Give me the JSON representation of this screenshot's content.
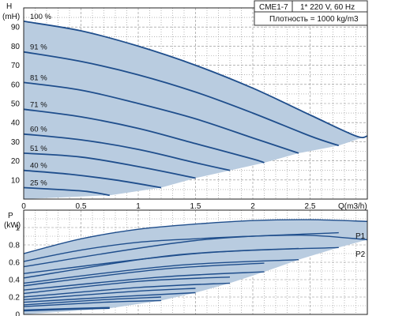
{
  "legend": {
    "model": "CME1-7",
    "supply": "1* 220 V, 60 Hz",
    "density": "Плотность = 1000 kg/m3"
  },
  "colors": {
    "curve": "#1f4e8c",
    "fill": "#b9cce0",
    "grid": "#8a8a8a",
    "axis": "#222222"
  },
  "chart_data": [
    {
      "type": "line",
      "id": "head",
      "ylabel_top": "H",
      "ylabel_unit": "(mH)",
      "xlabel": "Q(m3/h)",
      "xlim": [
        0,
        3.0
      ],
      "ylim": [
        0,
        100
      ],
      "xticks": [
        "0",
        "0.5",
        "1",
        "1.5",
        "2",
        "2.5"
      ],
      "yticks": [
        "10",
        "20",
        "30",
        "40",
        "50",
        "60",
        "70",
        "80",
        "90"
      ],
      "grid": true,
      "series": [
        {
          "name": "100 %",
          "x": [
            0,
            0.5,
            1.0,
            1.5,
            2.0,
            2.5,
            2.9,
            3.0
          ],
          "y": [
            93,
            88,
            80,
            70,
            58,
            44,
            33,
            33
          ]
        },
        {
          "name": "91 %",
          "x": [
            0,
            0.5,
            1.0,
            1.5,
            2.0,
            2.5,
            2.75
          ],
          "y": [
            77,
            72,
            65,
            56,
            45,
            33,
            28
          ]
        },
        {
          "name": "81 %",
          "x": [
            0,
            0.5,
            1.0,
            1.5,
            2.0,
            2.4
          ],
          "y": [
            61,
            57,
            50,
            42,
            32,
            24
          ]
        },
        {
          "name": "71 %",
          "x": [
            0,
            0.5,
            1.0,
            1.5,
            2.0,
            2.1
          ],
          "y": [
            47,
            43,
            37,
            29,
            21,
            19
          ]
        },
        {
          "name": "60 %",
          "x": [
            0,
            0.5,
            1.0,
            1.5,
            1.8
          ],
          "y": [
            34,
            31,
            26,
            19,
            15
          ]
        },
        {
          "name": "51 %",
          "x": [
            0,
            0.5,
            1.0,
            1.5
          ],
          "y": [
            24,
            22,
            17,
            11
          ]
        },
        {
          "name": "40 %",
          "x": [
            0,
            0.4,
            0.8,
            1.2
          ],
          "y": [
            15,
            13,
            10,
            6
          ]
        },
        {
          "name": "25 %",
          "x": [
            0,
            0.3,
            0.55,
            0.75
          ],
          "y": [
            6,
            5,
            4,
            2
          ]
        }
      ],
      "envelope_lower": {
        "x": [
          0,
          0.75,
          1.2,
          1.5,
          1.8,
          2.1,
          2.4,
          2.75,
          3.0
        ],
        "y": [
          0,
          2,
          6,
          11,
          15,
          19,
          24,
          28,
          33
        ]
      }
    },
    {
      "type": "line",
      "id": "power",
      "ylabel_top": "P",
      "ylabel_unit": "(kW)",
      "xlim": [
        0,
        3.0
      ],
      "ylim": [
        0,
        1.2
      ],
      "yticks": [
        "0",
        "0.2",
        "0.4",
        "0.6",
        "0.8",
        "1"
      ],
      "grid": true,
      "labels": [
        "P1",
        "P2"
      ],
      "series": [
        {
          "name": "P1 100 %",
          "x": [
            0,
            0.5,
            1.0,
            1.5,
            2.0,
            2.5,
            3.0
          ],
          "y": [
            0.7,
            0.87,
            0.98,
            1.04,
            1.08,
            1.09,
            1.07
          ]
        },
        {
          "name": "P2 100 %",
          "x": [
            0,
            0.5,
            1.0,
            1.5,
            2.0,
            2.5,
            3.0
          ],
          "y": [
            0.61,
            0.74,
            0.83,
            0.87,
            0.9,
            0.91,
            0.86
          ]
        },
        {
          "name": "P1 91 %",
          "x": [
            0,
            1.5,
            2.75
          ],
          "y": [
            0.55,
            0.85,
            0.94
          ]
        },
        {
          "name": "P2 91 %",
          "x": [
            0,
            1.5,
            2.75
          ],
          "y": [
            0.47,
            0.7,
            0.77
          ]
        },
        {
          "name": "P1 81 %",
          "x": [
            0,
            1.3,
            2.4
          ],
          "y": [
            0.42,
            0.68,
            0.76
          ]
        },
        {
          "name": "P2 81 %",
          "x": [
            0,
            1.3,
            2.4
          ],
          "y": [
            0.36,
            0.56,
            0.63
          ]
        },
        {
          "name": "P1 71 %",
          "x": [
            0,
            1.2,
            2.1
          ],
          "y": [
            0.33,
            0.52,
            0.59
          ]
        },
        {
          "name": "P2 71 %",
          "x": [
            0,
            1.2,
            2.1
          ],
          "y": [
            0.28,
            0.43,
            0.49
          ]
        },
        {
          "name": "P1 60 %",
          "x": [
            0,
            1.0,
            1.8
          ],
          "y": [
            0.24,
            0.38,
            0.43
          ]
        },
        {
          "name": "P2 60 %",
          "x": [
            0,
            1.0,
            1.8
          ],
          "y": [
            0.2,
            0.31,
            0.36
          ]
        },
        {
          "name": "P1 51 %",
          "x": [
            0,
            0.9,
            1.5
          ],
          "y": [
            0.17,
            0.26,
            0.3
          ]
        },
        {
          "name": "P2 51 %",
          "x": [
            0,
            0.9,
            1.5
          ],
          "y": [
            0.14,
            0.21,
            0.25
          ]
        },
        {
          "name": "P1 40 %",
          "x": [
            0,
            0.7,
            1.2
          ],
          "y": [
            0.11,
            0.17,
            0.2
          ]
        },
        {
          "name": "P2 40 %",
          "x": [
            0,
            0.7,
            1.2
          ],
          "y": [
            0.09,
            0.14,
            0.16
          ]
        },
        {
          "name": "P1 25 %",
          "x": [
            0,
            0.45,
            0.75
          ],
          "y": [
            0.05,
            0.07,
            0.08
          ]
        },
        {
          "name": "P2 25 %",
          "x": [
            0,
            0.45,
            0.75
          ],
          "y": [
            0.04,
            0.06,
            0.07
          ]
        }
      ],
      "envelope_upper": {
        "x": [
          0,
          0.5,
          1.0,
          1.5,
          2.0,
          2.5,
          3.0
        ],
        "y": [
          0.7,
          0.87,
          0.98,
          1.04,
          1.08,
          1.09,
          1.07
        ]
      },
      "envelope_lower": {
        "x": [
          0,
          0.75,
          1.2,
          1.5,
          1.8,
          2.1,
          2.4,
          2.75,
          3.0
        ],
        "y": [
          0,
          0.07,
          0.16,
          0.25,
          0.36,
          0.49,
          0.63,
          0.77,
          0.86
        ]
      }
    }
  ]
}
